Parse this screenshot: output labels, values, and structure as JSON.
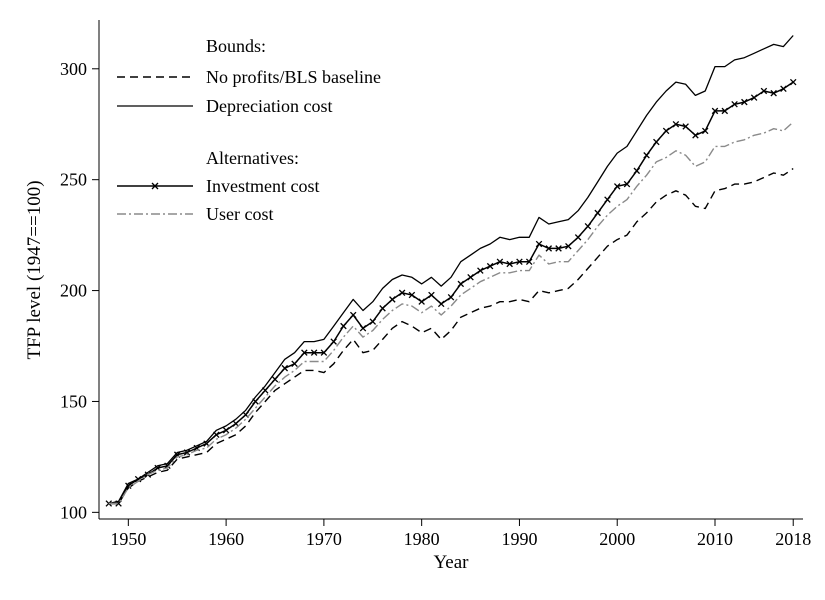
{
  "chart_data": {
    "type": "line",
    "xlabel": "Year",
    "ylabel": "TFP level (1947==100)",
    "xlim": [
      1947,
      2019
    ],
    "ylim": [
      97,
      322
    ],
    "xticks": [
      1950,
      1960,
      1970,
      1980,
      1990,
      2000,
      2010,
      2018
    ],
    "yticks": [
      100,
      150,
      200,
      250,
      300
    ],
    "legend": {
      "position": "top-left",
      "groups": [
        {
          "title": "Bounds:",
          "entries": [
            {
              "label": "No profits/BLS baseline",
              "series": 0
            },
            {
              "label": "Depreciation cost",
              "series": 1
            }
          ]
        },
        {
          "title": "Alternatives:",
          "entries": [
            {
              "label": "Investment cost",
              "series": 2
            },
            {
              "label": "User cost",
              "series": 3
            }
          ]
        }
      ]
    },
    "x": [
      1948,
      1949,
      1950,
      1951,
      1952,
      1953,
      1954,
      1955,
      1956,
      1957,
      1958,
      1959,
      1960,
      1961,
      1962,
      1963,
      1964,
      1965,
      1966,
      1967,
      1968,
      1969,
      1970,
      1971,
      1972,
      1973,
      1974,
      1975,
      1976,
      1977,
      1978,
      1979,
      1980,
      1981,
      1982,
      1983,
      1984,
      1985,
      1986,
      1987,
      1988,
      1989,
      1990,
      1991,
      1992,
      1993,
      1994,
      1995,
      1996,
      1997,
      1998,
      1999,
      2000,
      2001,
      2002,
      2003,
      2004,
      2005,
      2006,
      2007,
      2008,
      2009,
      2010,
      2011,
      2012,
      2013,
      2014,
      2015,
      2016,
      2017,
      2018
    ],
    "series": [
      {
        "name": "No profits/BLS baseline",
        "style": {
          "color": "#000000",
          "dash": "8,5",
          "width": 1.4,
          "marker": "none"
        },
        "values": [
          104,
          104,
          111,
          114,
          116,
          118,
          119,
          124,
          125,
          126,
          127,
          131,
          133,
          135,
          139,
          145,
          150,
          155,
          158,
          161,
          164,
          164,
          163,
          167,
          173,
          178,
          172,
          173,
          178,
          183,
          186,
          184,
          181,
          183,
          178,
          182,
          188,
          190,
          192,
          193,
          195,
          195,
          196,
          195,
          200,
          199,
          200,
          201,
          205,
          210,
          215,
          220,
          223,
          225,
          231,
          235,
          240,
          243,
          245,
          243,
          238,
          237,
          245,
          246,
          248,
          248,
          249,
          251,
          253,
          252,
          255
        ]
      },
      {
        "name": "Depreciation cost",
        "style": {
          "color": "#000000",
          "dash": "",
          "width": 1.3,
          "marker": "none"
        },
        "values": [
          104,
          105,
          113,
          115,
          118,
          121,
          122,
          127,
          128,
          130,
          132,
          137,
          139,
          142,
          146,
          152,
          157,
          163,
          169,
          172,
          177,
          177,
          178,
          184,
          190,
          196,
          191,
          195,
          201,
          205,
          207,
          206,
          203,
          206,
          202,
          206,
          213,
          216,
          219,
          221,
          224,
          223,
          224,
          224,
          233,
          230,
          231,
          232,
          236,
          242,
          249,
          256,
          262,
          265,
          272,
          279,
          285,
          290,
          294,
          293,
          288,
          290,
          301,
          301,
          304,
          305,
          307,
          309,
          311,
          310,
          315
        ]
      },
      {
        "name": "Investment cost",
        "style": {
          "color": "#000000",
          "dash": "",
          "width": 1.5,
          "marker": "x"
        },
        "values": [
          104,
          104,
          112,
          115,
          117,
          120,
          121,
          126,
          127,
          129,
          131,
          135,
          137,
          140,
          144,
          150,
          155,
          160,
          165,
          167,
          172,
          172,
          172,
          177,
          184,
          189,
          183,
          186,
          192,
          196,
          199,
          198,
          195,
          198,
          194,
          197,
          203,
          206,
          209,
          211,
          213,
          212,
          213,
          213,
          221,
          219,
          219,
          220,
          224,
          229,
          235,
          241,
          247,
          248,
          254,
          261,
          267,
          272,
          275,
          274,
          270,
          272,
          281,
          281,
          284,
          285,
          287,
          290,
          289,
          291,
          294
        ]
      },
      {
        "name": "User cost",
        "style": {
          "color": "#8a8a8a",
          "dash": "9,3,2,3",
          "width": 1.4,
          "marker": "none"
        },
        "values": [
          104,
          104,
          111,
          114,
          117,
          119,
          120,
          125,
          126,
          128,
          129,
          133,
          135,
          138,
          142,
          147,
          152,
          157,
          161,
          164,
          168,
          168,
          168,
          173,
          179,
          184,
          179,
          182,
          187,
          191,
          194,
          193,
          190,
          193,
          189,
          193,
          198,
          201,
          204,
          206,
          208,
          208,
          209,
          209,
          216,
          212,
          213,
          213,
          218,
          223,
          229,
          234,
          238,
          241,
          247,
          252,
          258,
          260,
          263,
          261,
          256,
          258,
          265,
          265,
          267,
          268,
          270,
          271,
          273,
          272,
          276
        ]
      }
    ]
  },
  "legend_text": {
    "bounds_title": "Bounds:",
    "entry_0": "No profits/BLS baseline",
    "entry_1": "Depreciation cost",
    "alt_title": "Alternatives:",
    "entry_2": "Investment cost",
    "entry_3": "User cost"
  }
}
